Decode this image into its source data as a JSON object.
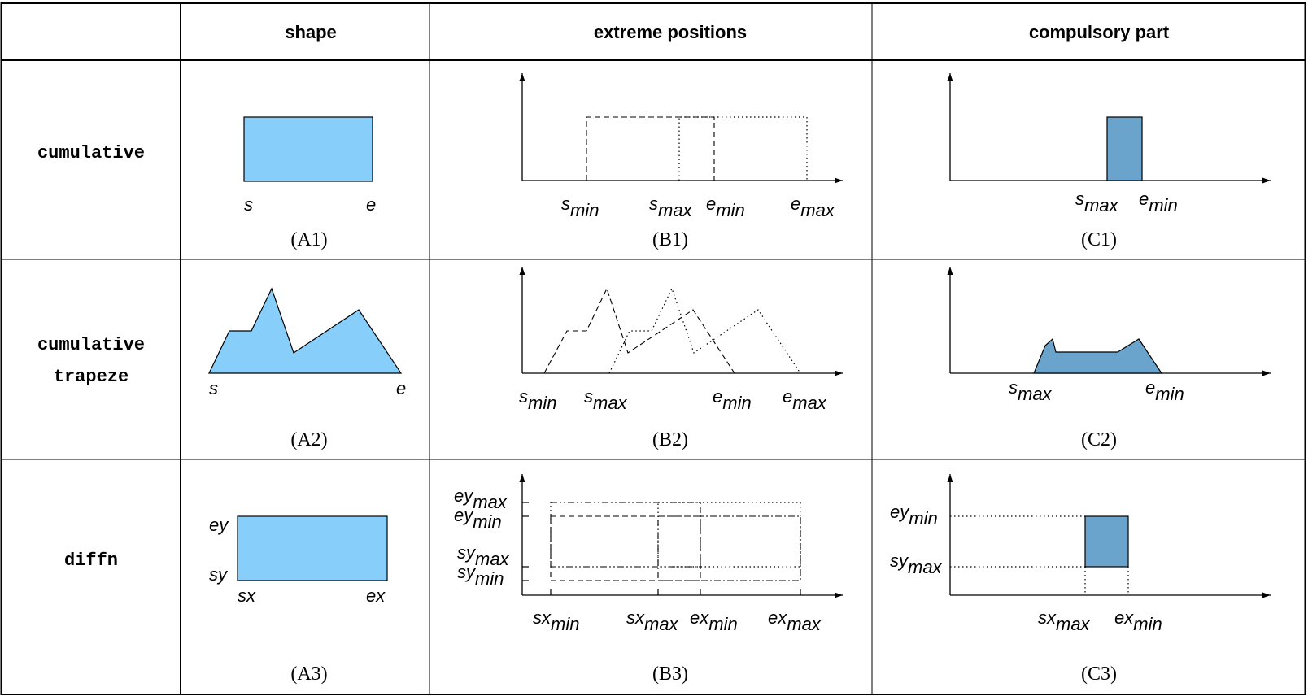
{
  "colors": {
    "line": "#000000",
    "shape_fill": "#87cefa",
    "compulsory_fill": "#6aa3cc"
  },
  "header": {
    "col_shape": "shape",
    "col_extreme": "extreme positions",
    "col_compulsory": "compulsory part"
  },
  "rows": {
    "r1": "cumulative",
    "r2_line1": "cumulative",
    "r2_line2": "trapeze",
    "r3": "diffn"
  },
  "captions": {
    "A1": "(A1)",
    "B1": "(B1)",
    "C1": "(C1)",
    "A2": "(A2)",
    "B2": "(B2)",
    "C2": "(C2)",
    "A3": "(A3)",
    "B3": "(B3)",
    "C3": "(C3)"
  },
  "labels": {
    "s": "s",
    "e": "e",
    "sy": "sy",
    "ey": "ey",
    "sx": "sx",
    "ex": "ex",
    "min": "min",
    "max": "max"
  }
}
